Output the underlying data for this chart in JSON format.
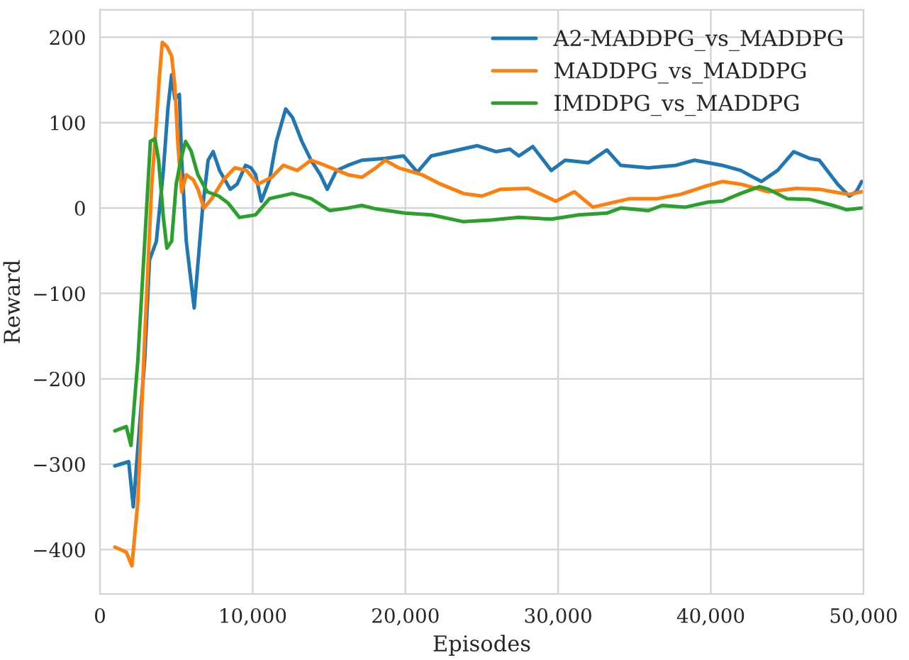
{
  "chart_data": {
    "type": "line",
    "xlabel": "Episodes",
    "ylabel": "Reward",
    "xlim": [
      0,
      50000
    ],
    "ylim": [
      -452,
      232
    ],
    "xticks": [
      0,
      {
        "value": 10000,
        "label": "10,000"
      },
      {
        "value": 20000,
        "label": "20,000"
      },
      {
        "value": 30000,
        "label": "30,000"
      },
      {
        "value": 40000,
        "label": "40,000"
      },
      {
        "value": 50000,
        "label": "50,000"
      }
    ],
    "yticks": [
      {
        "value": -400,
        "label": "−400"
      },
      {
        "value": -300,
        "label": "−300"
      },
      {
        "value": -200,
        "label": "−200"
      },
      {
        "value": -100,
        "label": "−100"
      },
      0,
      100,
      200
    ],
    "grid": true,
    "legend": "top right",
    "marker": "none",
    "line_style": "solid",
    "series": [
      {
        "name": "A2-MADDPG_vs_MADDPG",
        "color": "#1f77b4",
        "x": [
          970,
          1880,
          2180,
          2930,
          3240,
          3690,
          4150,
          4450,
          4690,
          4900,
          5200,
          5350,
          5650,
          6170,
          6720,
          7080,
          7410,
          7830,
          8530,
          8980,
          9530,
          9890,
          10190,
          10560,
          11100,
          11550,
          12160,
          12610,
          13220,
          13820,
          14430,
          14880,
          15490,
          16240,
          17150,
          18670,
          19870,
          20780,
          21690,
          23200,
          24710,
          25930,
          26830,
          27430,
          28340,
          29550,
          30460,
          31970,
          33190,
          34090,
          35910,
          37720,
          38930,
          40740,
          41950,
          43310,
          44370,
          45430,
          46490,
          47100,
          48300,
          49060,
          49520,
          49880
        ],
        "values": [
          -302,
          -297,
          -350,
          -177,
          -61,
          -39,
          44,
          117,
          156,
          128,
          133,
          56,
          -39,
          -117,
          0,
          56,
          66,
          44,
          22,
          28,
          50,
          47,
          39,
          8,
          33,
          78,
          116,
          106,
          78,
          56,
          39,
          22,
          44,
          50,
          56,
          58,
          61,
          42,
          61,
          67,
          73,
          66,
          69,
          61,
          72,
          44,
          56,
          53,
          68,
          50,
          47,
          50,
          56,
          50,
          44,
          31,
          44,
          66,
          58,
          56,
          28,
          14,
          19,
          31
        ]
      },
      {
        "name": "MADDPG_vs_MADDPG",
        "color": "#ff7f0e",
        "x": [
          970,
          1720,
          2090,
          2480,
          2930,
          3390,
          3690,
          3900,
          4080,
          4380,
          4690,
          4900,
          5110,
          5350,
          5650,
          6110,
          6410,
          6810,
          7320,
          8080,
          8830,
          9590,
          10340,
          11250,
          12000,
          12910,
          13820,
          14730,
          16240,
          17150,
          18060,
          18670,
          19570,
          21080,
          22300,
          23800,
          25020,
          26230,
          28040,
          29850,
          31060,
          32280,
          33480,
          34690,
          36510,
          38020,
          39540,
          40740,
          41950,
          43770,
          45580,
          47100,
          48000,
          49060,
          49880
        ],
        "values": [
          -397,
          -403,
          -419,
          -344,
          -150,
          28,
          100,
          156,
          194,
          189,
          178,
          144,
          72,
          19,
          39,
          33,
          22,
          0,
          11,
          33,
          47,
          44,
          28,
          36,
          50,
          44,
          56,
          50,
          39,
          36,
          47,
          56,
          47,
          39,
          28,
          17,
          14,
          22,
          23,
          8,
          19,
          1,
          6,
          11,
          11,
          16,
          25,
          31,
          28,
          19,
          23,
          22,
          19,
          16,
          19
        ]
      },
      {
        "name": "IMDDPG_vs_MADDPG",
        "color": "#2ca02c",
        "x": [
          970,
          1720,
          2030,
          2480,
          2930,
          3300,
          3600,
          3840,
          4150,
          4380,
          4690,
          4990,
          5290,
          5600,
          5960,
          6410,
          7020,
          7780,
          8380,
          9130,
          10190,
          11100,
          12610,
          13820,
          15040,
          16240,
          17150,
          18060,
          19960,
          21690,
          23800,
          25630,
          27430,
          29550,
          31370,
          33190,
          34090,
          35910,
          36810,
          38330,
          39840,
          40740,
          41950,
          43170,
          43770,
          44980,
          46490,
          48000,
          48910,
          49880
        ],
        "values": [
          -261,
          -256,
          -278,
          -178,
          -39,
          78,
          81,
          56,
          -11,
          -47,
          -39,
          28,
          56,
          78,
          67,
          39,
          19,
          14,
          6,
          -11,
          -8,
          11,
          17,
          11,
          -3,
          0,
          3,
          -1,
          -6,
          -8,
          -16,
          -14,
          -11,
          -13,
          -8,
          -6,
          0,
          -3,
          3,
          1,
          7,
          8,
          17,
          25,
          22,
          11,
          10,
          3,
          -2,
          0
        ]
      }
    ]
  }
}
